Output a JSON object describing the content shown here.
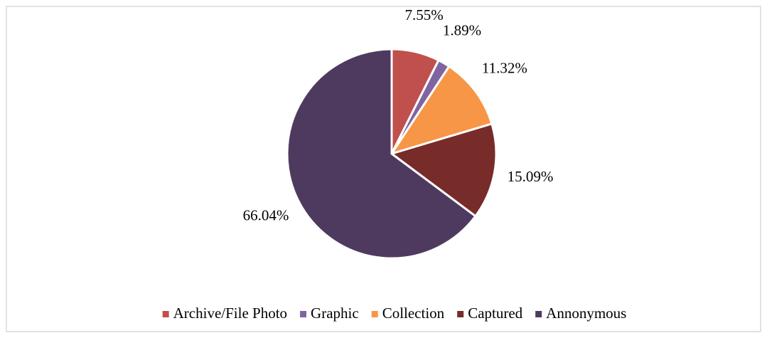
{
  "chart_data": {
    "type": "pie",
    "categories": [
      "Archive/File Photo",
      "Graphic",
      "Collection",
      "Captured",
      "Annonymous"
    ],
    "values": [
      7.55,
      1.89,
      11.32,
      15.09,
      66.04
    ],
    "value_labels": [
      "7.55%",
      "1.89%",
      "11.32%",
      "15.09%",
      "66.04%"
    ],
    "colors": [
      "#c0504d",
      "#8064a2",
      "#f79646",
      "#772c2a",
      "#4f3a5f"
    ],
    "legend": "bottom"
  }
}
